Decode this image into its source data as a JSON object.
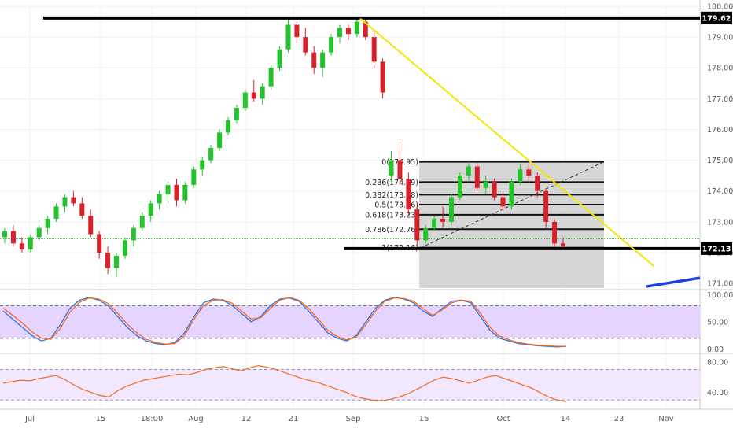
{
  "chart_data": [
    {
      "type": "candlestick",
      "title": "",
      "series_name": "",
      "y_axis_ticks": [
        171.0,
        172.0,
        173.0,
        174.0,
        175.0,
        176.0,
        177.0,
        178.0,
        179.0,
        180.0
      ],
      "ylim": [
        170.85,
        180.05
      ],
      "x_axis_labels": [
        "Jul",
        "15",
        "18:00",
        "Aug",
        "12",
        "21",
        "Sep",
        "16",
        "Oct",
        "14",
        "23",
        "Nov"
      ],
      "price_tags": [
        {
          "label": "179.62",
          "value": 179.62
        },
        {
          "label": "172.13",
          "value": 172.13
        }
      ],
      "horizontal_lines": [
        {
          "name": "resistance",
          "value": 179.62,
          "color": "#000000"
        },
        {
          "name": "support",
          "value": 172.13,
          "color": "#000000"
        }
      ],
      "current_price_line": {
        "value": 172.45,
        "color": "#22bb22"
      },
      "fibonacci": {
        "levels": [
          {
            "label": "0(174.95)",
            "value": 174.95
          },
          {
            "label": "0.236(174.29)",
            "value": 174.29
          },
          {
            "label": "0.382(173.88)",
            "value": 173.88
          },
          {
            "label": "0.5(173.56)",
            "value": 173.56
          },
          {
            "label": "0.618(173.23)",
            "value": 173.23
          },
          {
            "label": "0.786(172.76)",
            "value": 172.76
          },
          {
            "label": "1(172.16)",
            "value": 172.16
          }
        ],
        "box_bottom": 170.85,
        "box_color": "#d1d1d1"
      },
      "trendline": {
        "from": 179.6,
        "to": 171.55,
        "color": "#f0e800"
      },
      "blue_line": {
        "from": 170.9,
        "to": 171.18,
        "color": "#1f3fe0"
      },
      "candles": [
        {
          "o": 172.5,
          "h": 172.8,
          "l": 172.3,
          "c": 172.7
        },
        {
          "o": 172.7,
          "h": 172.9,
          "l": 172.2,
          "c": 172.3
        },
        {
          "o": 172.3,
          "h": 172.5,
          "l": 172.0,
          "c": 172.1
        },
        {
          "o": 172.1,
          "h": 172.6,
          "l": 172.0,
          "c": 172.5
        },
        {
          "o": 172.5,
          "h": 172.9,
          "l": 172.4,
          "c": 172.8
        },
        {
          "o": 172.8,
          "h": 173.2,
          "l": 172.6,
          "c": 173.1
        },
        {
          "o": 173.1,
          "h": 173.6,
          "l": 173.0,
          "c": 173.5
        },
        {
          "o": 173.5,
          "h": 173.9,
          "l": 173.3,
          "c": 173.8
        },
        {
          "o": 173.8,
          "h": 174.0,
          "l": 173.5,
          "c": 173.6
        },
        {
          "o": 173.6,
          "h": 173.8,
          "l": 173.1,
          "c": 173.2
        },
        {
          "o": 173.2,
          "h": 173.4,
          "l": 172.5,
          "c": 172.6
        },
        {
          "o": 172.6,
          "h": 172.7,
          "l": 171.8,
          "c": 172.0
        },
        {
          "o": 172.0,
          "h": 172.2,
          "l": 171.3,
          "c": 171.5
        },
        {
          "o": 171.5,
          "h": 172.0,
          "l": 171.2,
          "c": 171.9
        },
        {
          "o": 171.9,
          "h": 172.5,
          "l": 171.8,
          "c": 172.4
        },
        {
          "o": 172.4,
          "h": 172.9,
          "l": 172.2,
          "c": 172.8
        },
        {
          "o": 172.8,
          "h": 173.3,
          "l": 172.7,
          "c": 173.2
        },
        {
          "o": 173.2,
          "h": 173.7,
          "l": 173.0,
          "c": 173.6
        },
        {
          "o": 173.6,
          "h": 174.0,
          "l": 173.4,
          "c": 173.9
        },
        {
          "o": 173.9,
          "h": 174.3,
          "l": 173.6,
          "c": 174.2
        },
        {
          "o": 174.2,
          "h": 174.4,
          "l": 173.5,
          "c": 173.7
        },
        {
          "o": 173.7,
          "h": 174.3,
          "l": 173.6,
          "c": 174.2
        },
        {
          "o": 174.2,
          "h": 174.8,
          "l": 174.1,
          "c": 174.7
        },
        {
          "o": 174.7,
          "h": 175.1,
          "l": 174.5,
          "c": 175.0
        },
        {
          "o": 175.0,
          "h": 175.5,
          "l": 174.9,
          "c": 175.4
        },
        {
          "o": 175.4,
          "h": 176.0,
          "l": 175.3,
          "c": 175.9
        },
        {
          "o": 175.9,
          "h": 176.4,
          "l": 175.8,
          "c": 176.3
        },
        {
          "o": 176.3,
          "h": 176.8,
          "l": 176.2,
          "c": 176.7
        },
        {
          "o": 176.7,
          "h": 177.3,
          "l": 176.6,
          "c": 177.2
        },
        {
          "o": 177.2,
          "h": 177.6,
          "l": 176.9,
          "c": 177.0
        },
        {
          "o": 177.0,
          "h": 177.5,
          "l": 176.8,
          "c": 177.4
        },
        {
          "o": 177.4,
          "h": 178.1,
          "l": 177.3,
          "c": 178.0
        },
        {
          "o": 178.0,
          "h": 178.7,
          "l": 177.9,
          "c": 178.6
        },
        {
          "o": 178.6,
          "h": 179.62,
          "l": 178.5,
          "c": 179.4
        },
        {
          "o": 179.4,
          "h": 179.5,
          "l": 178.8,
          "c": 179.0
        },
        {
          "o": 179.0,
          "h": 179.3,
          "l": 178.4,
          "c": 178.5
        },
        {
          "o": 178.5,
          "h": 178.7,
          "l": 177.8,
          "c": 178.0
        },
        {
          "o": 178.0,
          "h": 178.6,
          "l": 177.7,
          "c": 178.5
        },
        {
          "o": 178.5,
          "h": 179.1,
          "l": 178.4,
          "c": 179.0
        },
        {
          "o": 179.0,
          "h": 179.4,
          "l": 178.8,
          "c": 179.3
        },
        {
          "o": 179.3,
          "h": 179.4,
          "l": 178.9,
          "c": 179.1
        },
        {
          "o": 179.1,
          "h": 179.62,
          "l": 179.0,
          "c": 179.5
        },
        {
          "o": 179.5,
          "h": 179.6,
          "l": 178.9,
          "c": 179.0
        },
        {
          "o": 179.0,
          "h": 179.2,
          "l": 178.0,
          "c": 178.2
        },
        {
          "o": 178.2,
          "h": 178.3,
          "l": 177.0,
          "c": 177.2
        },
        {
          "o": 174.5,
          "h": 175.3,
          "l": 174.3,
          "c": 175.0
        },
        {
          "o": 175.0,
          "h": 175.6,
          "l": 174.2,
          "c": 174.4
        },
        {
          "o": 174.4,
          "h": 174.6,
          "l": 173.2,
          "c": 173.4
        },
        {
          "o": 173.4,
          "h": 173.6,
          "l": 172.16,
          "c": 172.4
        },
        {
          "o": 172.4,
          "h": 172.9,
          "l": 172.3,
          "c": 172.8
        },
        {
          "o": 172.8,
          "h": 173.2,
          "l": 172.7,
          "c": 173.1
        },
        {
          "o": 173.1,
          "h": 173.5,
          "l": 172.8,
          "c": 173.0
        },
        {
          "o": 173.0,
          "h": 173.9,
          "l": 172.9,
          "c": 173.8
        },
        {
          "o": 173.8,
          "h": 174.6,
          "l": 173.7,
          "c": 174.5
        },
        {
          "o": 174.5,
          "h": 174.95,
          "l": 174.3,
          "c": 174.8
        },
        {
          "o": 174.8,
          "h": 174.9,
          "l": 174.0,
          "c": 174.1
        },
        {
          "o": 174.1,
          "h": 174.5,
          "l": 173.9,
          "c": 174.3
        },
        {
          "o": 174.3,
          "h": 174.4,
          "l": 173.7,
          "c": 173.8
        },
        {
          "o": 173.8,
          "h": 174.0,
          "l": 173.3,
          "c": 173.5
        },
        {
          "o": 173.5,
          "h": 174.4,
          "l": 173.4,
          "c": 174.3
        },
        {
          "o": 174.3,
          "h": 174.9,
          "l": 174.2,
          "c": 174.7
        },
        {
          "o": 174.7,
          "h": 174.9,
          "l": 174.3,
          "c": 174.5
        },
        {
          "o": 174.5,
          "h": 174.6,
          "l": 173.8,
          "c": 174.0
        },
        {
          "o": 174.0,
          "h": 174.1,
          "l": 172.8,
          "c": 173.0
        },
        {
          "o": 173.0,
          "h": 173.1,
          "l": 172.1,
          "c": 172.3
        },
        {
          "o": 172.3,
          "h": 172.5,
          "l": 172.1,
          "c": 172.2
        }
      ]
    },
    {
      "type": "line",
      "name": "stochastic",
      "y_ticks": [
        "100.00",
        "50.00",
        "0.00"
      ],
      "y_tick_values": [
        100,
        50,
        0
      ],
      "ylim": [
        -5,
        105
      ],
      "band": [
        20,
        80
      ],
      "band_color": "#e1ccff",
      "series": [
        {
          "name": "",
          "color": "#2f6fe0",
          "values": [
            70,
            55,
            40,
            25,
            15,
            20,
            45,
            75,
            90,
            95,
            90,
            80,
            60,
            40,
            25,
            15,
            10,
            8,
            12,
            30,
            60,
            85,
            92,
            90,
            80,
            65,
            50,
            60,
            80,
            92,
            94,
            88,
            70,
            50,
            30,
            20,
            15,
            25,
            50,
            75,
            90,
            95,
            92,
            85,
            70,
            60,
            75,
            88,
            90,
            85,
            60,
            35,
            20,
            15,
            10,
            8,
            6,
            5,
            4,
            5
          ]
        },
        {
          "name": "",
          "color": "#f26a1b",
          "values": [
            75,
            62,
            48,
            32,
            20,
            18,
            38,
            68,
            86,
            94,
            92,
            84,
            66,
            46,
            30,
            18,
            12,
            9,
            10,
            25,
            55,
            80,
            90,
            91,
            84,
            70,
            55,
            58,
            75,
            90,
            95,
            90,
            75,
            55,
            35,
            23,
            17,
            22,
            45,
            70,
            88,
            94,
            93,
            88,
            74,
            62,
            72,
            85,
            90,
            88,
            66,
            40,
            24,
            17,
            12,
            9,
            7,
            6,
            5,
            5
          ]
        }
      ]
    },
    {
      "type": "line",
      "name": "rsi",
      "y_ticks": [
        "80.00",
        "40.00"
      ],
      "y_tick_values": [
        80,
        40
      ],
      "ylim": [
        20,
        88
      ],
      "band": [
        30,
        70
      ],
      "band_color": "#f0e6ff",
      "series": [
        {
          "name": "",
          "color": "#f26a1b",
          "values": [
            52,
            54,
            56,
            55,
            58,
            60,
            62,
            57,
            50,
            44,
            40,
            36,
            34,
            42,
            48,
            52,
            56,
            58,
            60,
            62,
            64,
            63,
            66,
            70,
            72,
            74,
            71,
            68,
            72,
            75,
            73,
            70,
            66,
            62,
            58,
            55,
            52,
            48,
            44,
            40,
            35,
            32,
            30,
            29,
            31,
            34,
            38,
            44,
            50,
            56,
            60,
            58,
            55,
            52,
            56,
            60,
            62,
            58,
            54,
            50,
            46,
            40,
            34,
            30,
            28
          ]
        }
      ]
    }
  ]
}
